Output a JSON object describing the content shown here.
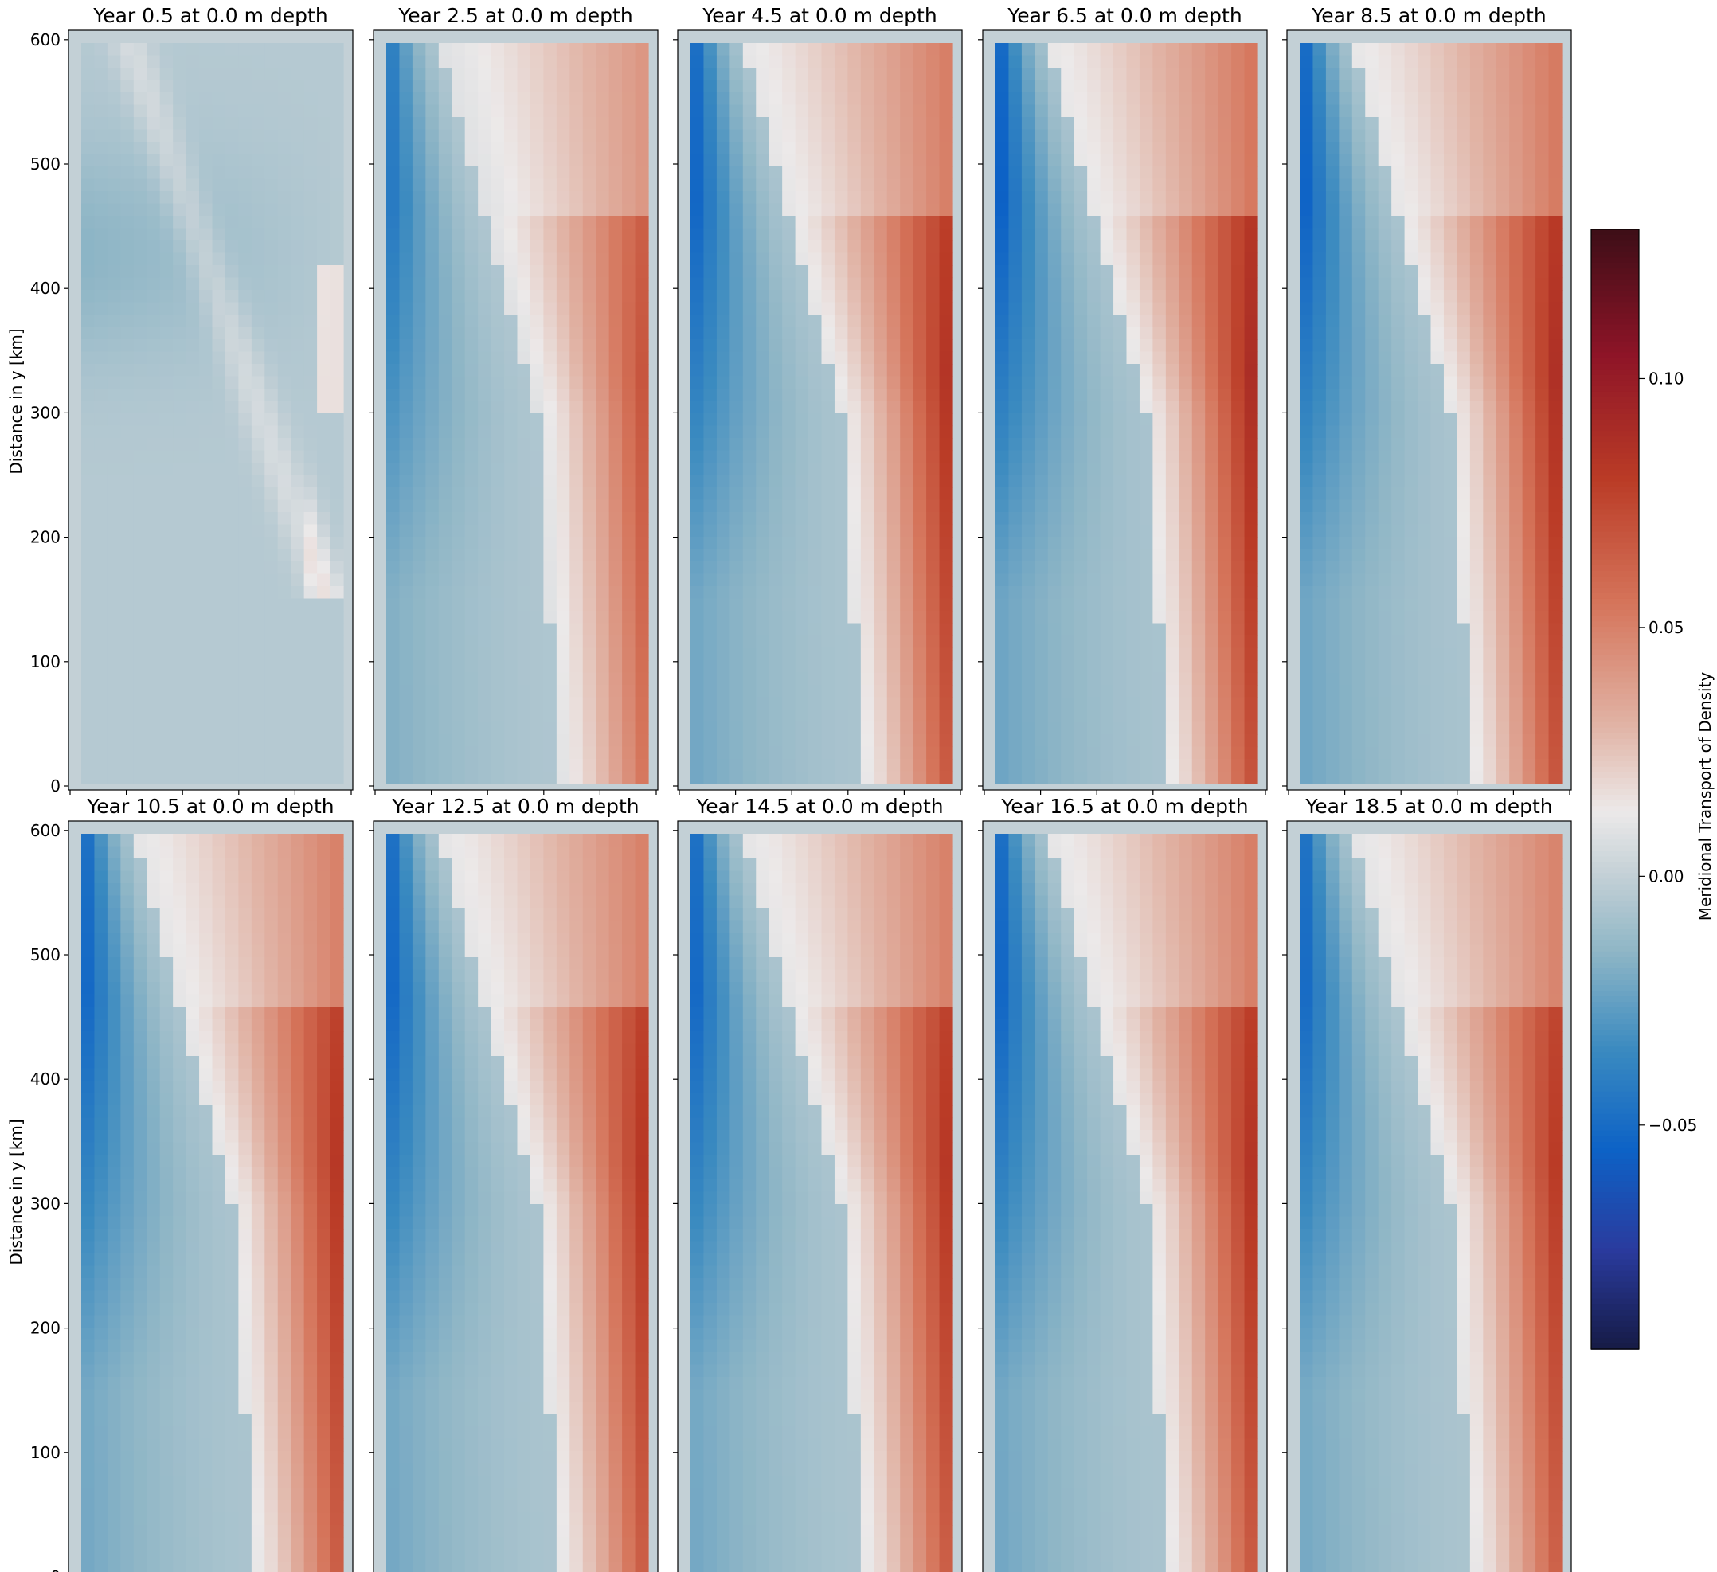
{
  "figure": {
    "y_axis_label": "Distance in y [km]",
    "colorbar_label": "Meridional Transport of Density"
  },
  "chart_data": {
    "type": "heatmap",
    "description_of_layout": "",
    "ylabel": "Distance in y [km]",
    "ylim": [
      0,
      600
    ],
    "y_ticks": [
      0,
      100,
      200,
      300,
      400,
      500,
      600
    ],
    "x_tick_count": 5,
    "colorbar": {
      "label": "Meridional Transport of Density",
      "range": [
        -0.095,
        0.13
      ],
      "ticks": [
        -0.05,
        0.0,
        0.05,
        0.1
      ],
      "tick_labels": [
        "−0.05",
        "0.00",
        "0.05",
        "0.10"
      ],
      "colormap": "balance",
      "colormap_stops": [
        {
          "v": -0.095,
          "color": "#161b46"
        },
        {
          "v": -0.075,
          "color": "#2a3b9e"
        },
        {
          "v": -0.055,
          "color": "#0d62c6"
        },
        {
          "v": -0.035,
          "color": "#3a8ac0"
        },
        {
          "v": -0.015,
          "color": "#8fb6c6"
        },
        {
          "v": 0.0,
          "color": "#c3d0d6"
        },
        {
          "v": 0.013,
          "color": "#ece9e9"
        },
        {
          "v": 0.03,
          "color": "#e1b4a6"
        },
        {
          "v": 0.055,
          "color": "#d5745a"
        },
        {
          "v": 0.08,
          "color": "#ba3b26"
        },
        {
          "v": 0.105,
          "color": "#8d1427"
        },
        {
          "v": 0.13,
          "color": "#3d0e17"
        }
      ]
    },
    "panels": [
      {
        "title": "Year 0.5 at 0.0 m depth",
        "year": 0.5,
        "depth_m": 0.0,
        "strength": 0.15
      },
      {
        "title": "Year 2.5 at 0.0 m depth",
        "year": 2.5,
        "depth_m": 0.0,
        "strength": 0.75
      },
      {
        "title": "Year 4.5 at 0.0 m depth",
        "year": 4.5,
        "depth_m": 0.0,
        "strength": 0.92
      },
      {
        "title": "Year 6.5 at 0.0 m depth",
        "year": 6.5,
        "depth_m": 0.0,
        "strength": 0.97
      },
      {
        "title": "Year 8.5 at 0.0 m depth",
        "year": 8.5,
        "depth_m": 0.0,
        "strength": 0.95
      },
      {
        "title": "Year 10.5 at 0.0 m depth",
        "year": 10.5,
        "depth_m": 0.0,
        "strength": 0.9
      },
      {
        "title": "Year 12.5 at 0.0 m depth",
        "year": 12.5,
        "depth_m": 0.0,
        "strength": 0.9
      },
      {
        "title": "Year 14.5 at 0.0 m depth",
        "year": 14.5,
        "depth_m": 0.0,
        "strength": 0.9
      },
      {
        "title": "Year 16.5 at 0.0 m depth",
        "year": 16.5,
        "depth_m": 0.0,
        "strength": 0.92
      },
      {
        "title": "Year 18.5 at 0.0 m depth",
        "year": 18.5,
        "depth_m": 0.0,
        "strength": 0.88
      }
    ],
    "grid": false,
    "legend": "colorbar-right"
  }
}
